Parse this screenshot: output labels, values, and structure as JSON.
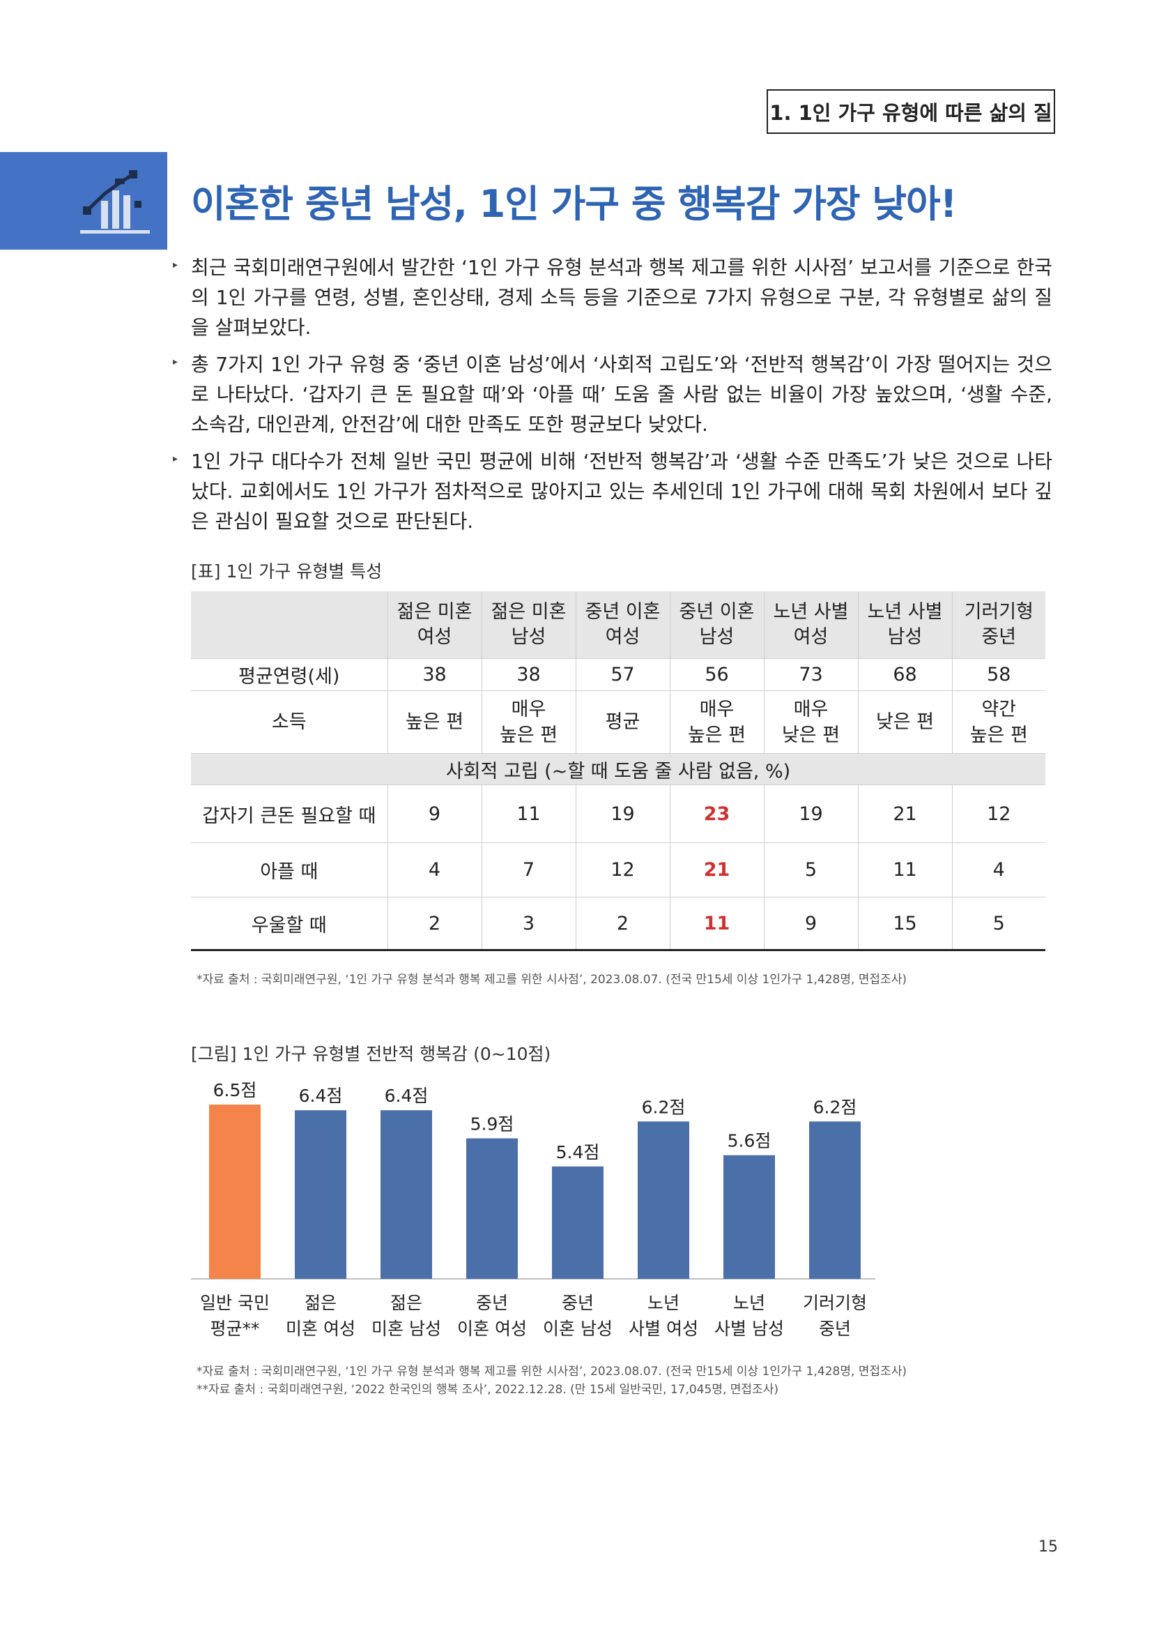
{
  "header": {
    "section": "1. 1인 가구 유형에 따른 삶의 질"
  },
  "title": "이혼한 중년 남성, 1인 가구 중 행복감 가장 낮아!",
  "bullets": [
    "최근 국회미래연구원에서 발간한 ‘1인 가구 유형 분석과 행복 제고를 위한 시사점’ 보고서를 기준으로 한국의 1인 가구를 연령, 성별, 혼인상태, 경제 소득 등을 기준으로 7가지 유형으로 구분, 각 유형별로 삶의 질을 살펴보았다.",
    "총 7가지 1인 가구 유형 중 ‘중년 이혼 남성’에서 ‘사회적 고립도’와 ‘전반적 행복감’이 가장 떨어지는 것으로 나타났다. ‘갑자기 큰 돈 필요할 때’와 ‘아플 때’ 도움 줄 사람 없는 비율이 가장 높았으며, ‘생활 수준, 소속감, 대인관계, 안전감’에 대한 만족도 또한 평균보다 낮았다.",
    "1인 가구 대다수가 전체 일반 국민 평균에 비해 ‘전반적 행복감’과 ‘생활 수준 만족도’가 낮은 것으로 나타났다. 교회에서도 1인 가구가 점차적으로 많아지고 있는 추세인데 1인 가구에 대해 목회 차원에서 보다 깊은 관심이 필요할 것으로 판단된다."
  ],
  "table": {
    "caption": "[표] 1인 가구 유형별 특성",
    "columns": [
      [
        "젊은 미혼",
        "여성"
      ],
      [
        "젊은 미혼",
        "남성"
      ],
      [
        "중년 이혼",
        "여성"
      ],
      [
        "중년 이혼",
        "남성"
      ],
      [
        "노년 사별",
        "여성"
      ],
      [
        "노년 사별",
        "남성"
      ],
      [
        "기러기형",
        "중년"
      ]
    ],
    "age_row": {
      "label": "평균연령(세)",
      "values": [
        "38",
        "38",
        "57",
        "56",
        "73",
        "68",
        "58"
      ]
    },
    "income_row": {
      "label": "소득",
      "values": [
        [
          "높은 편"
        ],
        [
          "매우",
          "높은 편"
        ],
        [
          "평균"
        ],
        [
          "매우",
          "높은 편"
        ],
        [
          "매우",
          "낮은 편"
        ],
        [
          "낮은 편"
        ],
        [
          "약간",
          "높은 편"
        ]
      ]
    },
    "group_header": "사회적 고립 (~할 때 도움 줄 사람 없음, %)",
    "isolation_rows": [
      {
        "label": "갑자기 큰돈 필요할 때",
        "values": [
          "9",
          "11",
          "19",
          "23",
          "19",
          "21",
          "12"
        ]
      },
      {
        "label": "아플 때",
        "values": [
          "4",
          "7",
          "12",
          "21",
          "5",
          "11",
          "4"
        ]
      },
      {
        "label": "우울할 때",
        "values": [
          "2",
          "3",
          "2",
          "11",
          "9",
          "15",
          "5"
        ]
      }
    ],
    "highlight_column": 3,
    "highlight_color": "#d03030",
    "source": "*자료 출처 : 국회미래연구원, ‘1인 가구 유형 분석과 행복 제고를 위한 시사점’, 2023.08.07. (전국 만15세 이상 1인가구 1,428명, 면접조사)"
  },
  "chart_data": {
    "type": "bar",
    "title": "[그림] 1인 가구 유형별 전반적 행복감 (0~10점)",
    "categories": [
      [
        "일반 국민",
        "평균**"
      ],
      [
        "젊은",
        "미혼 여성"
      ],
      [
        "젊은",
        "미혼 남성"
      ],
      [
        "중년",
        "이혼 여성"
      ],
      [
        "중년",
        "이혼 남성"
      ],
      [
        "노년",
        "사별 여성"
      ],
      [
        "노년",
        "사별 남성"
      ],
      [
        "기러기형",
        "중년"
      ]
    ],
    "values": [
      6.5,
      6.4,
      6.4,
      5.9,
      5.4,
      6.2,
      5.6,
      6.2
    ],
    "value_labels": [
      "6.5점",
      "6.4점",
      "6.4점",
      "5.9점",
      "5.4점",
      "6.2점",
      "5.6점",
      "6.2점"
    ],
    "colors": [
      "#f4844a",
      "#4a6fa9",
      "#4a6fa9",
      "#4a6fa9",
      "#4a6fa9",
      "#4a6fa9",
      "#4a6fa9",
      "#4a6fa9"
    ],
    "ylim": [
      3.4,
      6.7
    ],
    "grid": false,
    "sources": [
      "*자료 출처 : 국회미래연구원, ‘1인 가구 유형 분석과 행복 제고를 위한 시사점’, 2023.08.07. (전국 만15세 이상 1인가구 1,428명, 면접조사)",
      "**자료 출처 : 국회미래연구원, ‘2022 한국인의 행복 조사’, 2022.12.28. (만 15세 일반국민, 17,045명, 면접조사)"
    ]
  },
  "page_number": "15"
}
